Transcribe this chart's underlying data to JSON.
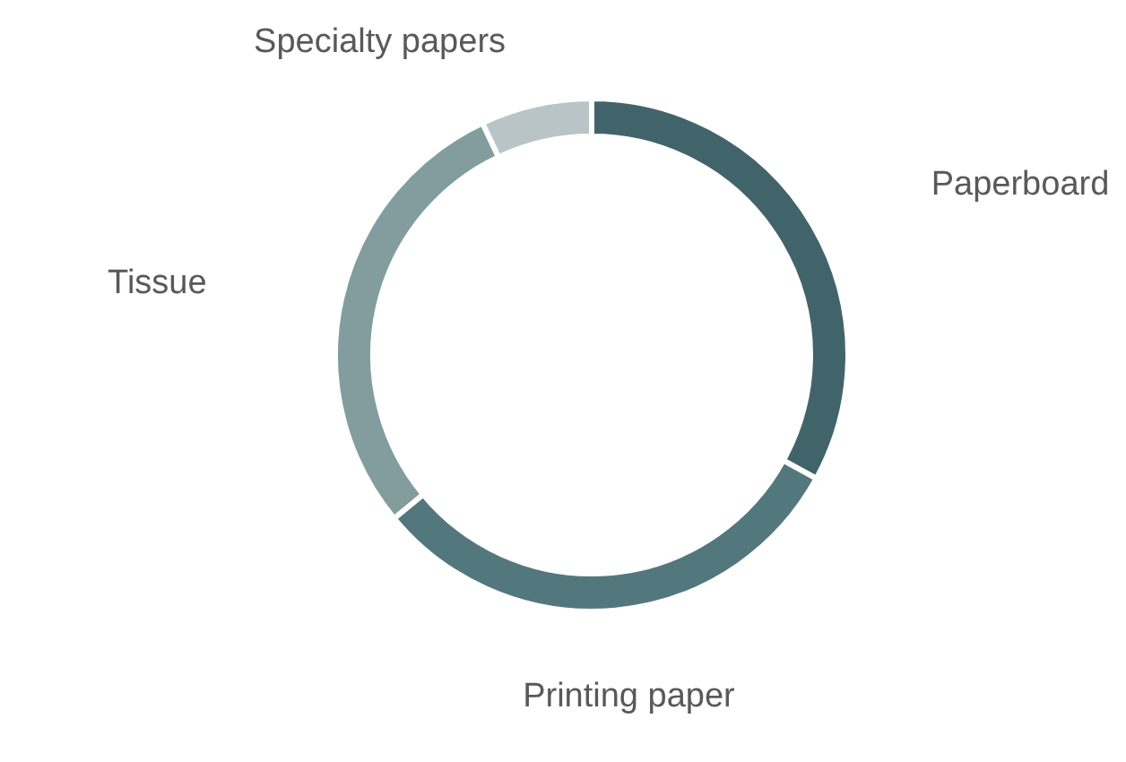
{
  "chart_data": {
    "type": "donut",
    "categories": [
      "Paperboard",
      "Printing paper",
      "Tissue",
      "Specialty papers"
    ],
    "values": [
      33,
      31,
      29,
      7
    ],
    "colors": [
      "#41646a",
      "#52787e",
      "#839d9f",
      "#b8c4c6"
    ]
  }
}
